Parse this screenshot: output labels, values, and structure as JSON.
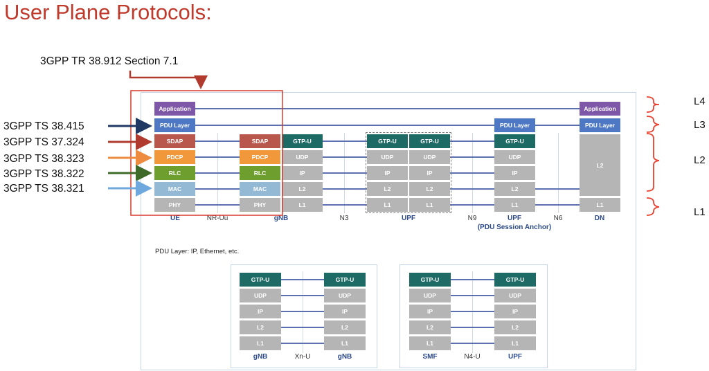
{
  "title": "User Plane Protocols:",
  "tr_reference": "3GPP TR 38.912 Section 7.1",
  "spec_references": [
    "3GPP TS 38.415",
    "3GPP TS 37.324",
    "3GPP TS 38.323",
    "3GPP TS 38.322",
    "3GPP TS 38.321"
  ],
  "levels": [
    "L4",
    "L3",
    "L2",
    "L1"
  ],
  "main": {
    "ue": [
      "Application",
      "PDU Layer",
      "SDAP",
      "PDCP",
      "RLC",
      "MAC",
      "PHY"
    ],
    "gnb": [
      "SDAP",
      "PDCP",
      "RLC",
      "MAC",
      "PHY"
    ],
    "gnb_n3": [
      "GTP-U",
      "UDP",
      "IP",
      "L2",
      "L1"
    ],
    "upf_stack": [
      "GTP-U",
      "UDP",
      "IP",
      "L2",
      "L1"
    ],
    "upf_anchor": [
      "PDU Layer",
      "GTP-U",
      "UDP",
      "IP",
      "L2",
      "L1"
    ],
    "dn": [
      "Application",
      "PDU Layer",
      "L2",
      "L1"
    ],
    "nodes": [
      "UE",
      "gNB",
      "UPF",
      "UPF",
      "DN"
    ],
    "anchor_note": "(PDU Session Anchor)",
    "interfaces": [
      "NR-Uu",
      "N3",
      "N9",
      "N6"
    ],
    "pdu_note": "PDU Layer: IP, Ethernet, etc."
  },
  "xn": {
    "stack": [
      "GTP-U",
      "UDP",
      "IP",
      "L2",
      "L1"
    ],
    "left": "gNB",
    "right": "gNB",
    "interface": "Xn-U"
  },
  "n4": {
    "stack": [
      "GTP-U",
      "UDP",
      "IP",
      "L2",
      "L1"
    ],
    "left": "SMF",
    "right": "UPF",
    "interface": "N4-U"
  },
  "colors": {
    "title": "#c0392b",
    "frame": "#d9382b",
    "arrow_sdap": "#1f3864",
    "arrow_pdcp_bracket": "#b03a2e",
    "arrow_pdcp": "#ed8b3f",
    "arrow_rlc": "#3f6b2a",
    "arrow_mac": "#6fa8dc"
  }
}
